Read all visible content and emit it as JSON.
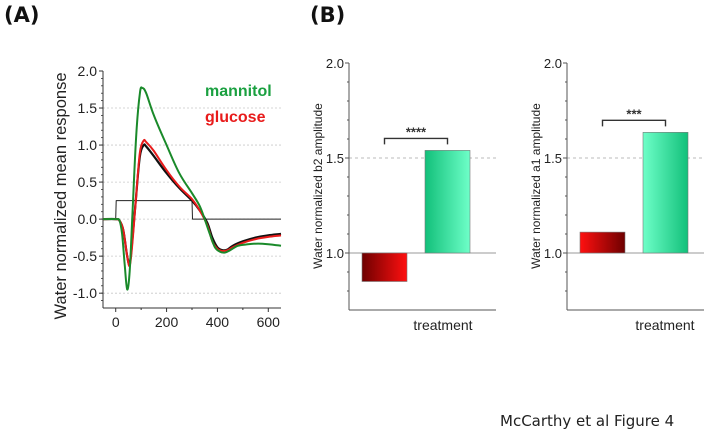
{
  "panel_labels": {
    "a": "(A)",
    "b": "(B)"
  },
  "caption": "McCarthy et al Figure 4",
  "colors": {
    "mannitol": "#1a8a2a",
    "glucose": "#e81b1b",
    "water": "#111111",
    "stimulus": "#222222",
    "mannitol_label": "#1aa040",
    "glucose_label": "#e81b1b",
    "bar_red_dark": "#6e0000",
    "bar_red_bright": "#ff1010",
    "bar_green_dark": "#12c07a",
    "bar_green_light": "#6effc8",
    "grid": "#bbbbbb"
  },
  "chart_data": [
    {
      "type": "line",
      "title": "",
      "xlabel": "",
      "ylabel": "Water normalized mean response",
      "xlim": [
        -50,
        650
      ],
      "ylim": [
        -1.2,
        2.0
      ],
      "xticks": [
        0,
        200,
        400,
        600
      ],
      "xtick_labels": [
        "0",
        "200",
        "400",
        "600"
      ],
      "yticks": [
        -1.0,
        -0.5,
        0.0,
        0.5,
        1.0,
        1.5,
        2.0
      ],
      "ytick_labels": [
        "-1.0",
        "-0.5",
        "0.0",
        "0.5",
        "1.0",
        "1.5",
        "2.0"
      ],
      "grid": "horizontal dashed",
      "legend": [
        {
          "name": "mannitol",
          "position": "top-right"
        },
        {
          "name": "glucose",
          "position": "top-right"
        }
      ],
      "series": [
        {
          "name": "stimulus",
          "x": [
            -50,
            0,
            2,
            300,
            302,
            650
          ],
          "y": [
            0,
            0,
            0.25,
            0.25,
            0,
            0
          ]
        },
        {
          "name": "water",
          "x": [
            -50,
            0,
            15,
            30,
            45,
            55,
            65,
            80,
            95,
            110,
            120,
            150,
            200,
            250,
            300,
            330,
            360,
            380,
            400,
            420,
            440,
            460,
            500,
            550,
            600,
            650
          ],
          "y": [
            0,
            0,
            -0.02,
            -0.15,
            -0.5,
            -0.6,
            -0.3,
            0.3,
            0.85,
            1.0,
            0.98,
            0.85,
            0.62,
            0.42,
            0.25,
            0.12,
            -0.05,
            -0.25,
            -0.38,
            -0.42,
            -0.41,
            -0.36,
            -0.3,
            -0.25,
            -0.22,
            -0.2
          ]
        },
        {
          "name": "glucose",
          "x": [
            -50,
            0,
            15,
            30,
            45,
            55,
            65,
            80,
            95,
            110,
            120,
            150,
            200,
            250,
            300,
            330,
            360,
            380,
            400,
            420,
            440,
            460,
            500,
            550,
            600,
            650
          ],
          "y": [
            0,
            0,
            -0.02,
            -0.15,
            -0.5,
            -0.63,
            -0.35,
            0.3,
            0.9,
            1.06,
            1.04,
            0.92,
            0.66,
            0.44,
            0.27,
            0.12,
            -0.08,
            -0.3,
            -0.4,
            -0.43,
            -0.42,
            -0.38,
            -0.32,
            -0.27,
            -0.24,
            -0.22
          ]
        },
        {
          "name": "mannitol",
          "x": [
            -50,
            0,
            15,
            25,
            35,
            45,
            55,
            65,
            80,
            95,
            105,
            120,
            150,
            200,
            250,
            300,
            330,
            350,
            370,
            390,
            410,
            430,
            450,
            480,
            520,
            560,
            600,
            650
          ],
          "y": [
            0,
            0,
            -0.02,
            -0.2,
            -0.6,
            -0.95,
            -0.7,
            0.0,
            1.1,
            1.7,
            1.77,
            1.7,
            1.4,
            1.0,
            0.62,
            0.35,
            0.18,
            0.0,
            -0.2,
            -0.38,
            -0.44,
            -0.45,
            -0.42,
            -0.36,
            -0.34,
            -0.33,
            -0.34,
            -0.36
          ]
        }
      ]
    },
    {
      "type": "bar",
      "title": "",
      "xlabel": "treatment",
      "ylabel": "Water normalized b2 amplitude",
      "ylim": [
        0.7,
        2.0
      ],
      "baseline": 1.0,
      "yticks": [
        1.0,
        1.5,
        2.0
      ],
      "ytick_labels": [
        "1.0",
        "1.5",
        "2.0"
      ],
      "minor_ytick_step": 0.1,
      "grid": "dashed at 1.5",
      "categories": [
        "glucose",
        "mannitol"
      ],
      "values": [
        0.85,
        1.54
      ],
      "significance": "****"
    },
    {
      "type": "bar",
      "title": "",
      "xlabel": "treatment",
      "ylabel": "Water normalized a1 amplitude",
      "ylim": [
        0.7,
        2.0
      ],
      "baseline": 1.0,
      "yticks": [
        1.0,
        1.5,
        2.0
      ],
      "ytick_labels": [
        "1.0",
        "1.5",
        "2.0"
      ],
      "minor_ytick_step": 0.1,
      "grid": "dashed at 1.5",
      "categories": [
        "glucose",
        "mannitol"
      ],
      "values": [
        1.11,
        1.635
      ],
      "significance": "***"
    }
  ]
}
